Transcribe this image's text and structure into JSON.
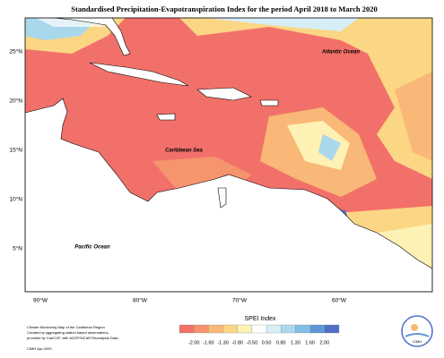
{
  "title": "Standardised Precipitation-Evapotranspiration Index for the period April 2018 to March 2020",
  "labels": {
    "atlantic": "Atlantic Ocean",
    "caribbean": "Caribbean Sea",
    "pacific": "Pacific Ocean"
  },
  "latitudes": [
    "25°N",
    "20°N",
    "15°N",
    "10°N",
    "5°N"
  ],
  "longitudes": [
    "90°W",
    "80°W",
    "70°W",
    "60°W"
  ],
  "legend": {
    "title": "SPEI Index",
    "ticks": [
      "-2.00",
      "-1.60",
      "-1.30",
      "-0.80",
      "-0.50",
      "0.50",
      "0.80",
      "1.30",
      "1.60",
      "2.00"
    ],
    "colors": [
      "#f2706a",
      "#f6946e",
      "#f9b877",
      "#fbd685",
      "#fdf1b3",
      "#ffffff",
      "#d6eef6",
      "#a9d8ec",
      "#82bfe6",
      "#5d97d8",
      "#4f6fc6"
    ]
  },
  "notes": [
    "Climate Monitoring Map of the Caribbean Region",
    "Created by aggregating station based observations,",
    "provided by CariCOF, with NCEP/NCAR Reanalysis Data.",
    "",
    "CIMH Apr-2020"
  ],
  "logo": "CIMH"
}
